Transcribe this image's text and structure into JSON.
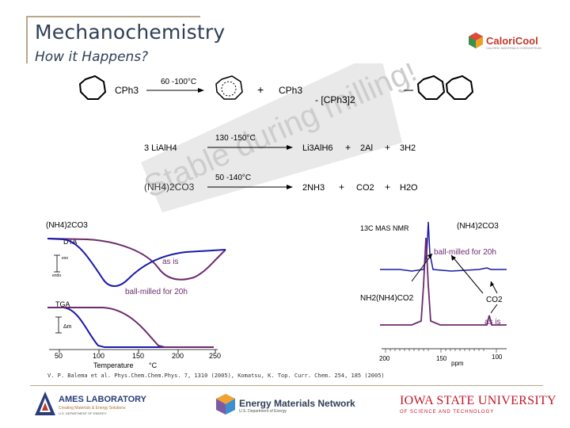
{
  "title": "Mechanochemistry",
  "subtitle": "How it Happens?",
  "watermark": "Stable during milling!",
  "logos": {
    "caloricool": "CaloriCool",
    "caloricool_sub": "CALORIC MATERIALS CONSORTIUM",
    "ames": "AMES LABORATORY",
    "ames_sub": "Creating Materials & Energy Solutions",
    "ames_sub2": "U.S. DEPARTMENT OF ENERGY",
    "emn": "Energy Materials Network",
    "emn_sub": "U.S. Department of Energy",
    "isu": "IOWA STATE UNIVERSITY",
    "isu_sub": "OF SCIENCE AND TECHNOLOGY"
  },
  "reactions": {
    "r1_cond": "60 -100°C",
    "r1_reactant": "CPh3",
    "r1_plus": "+",
    "r1_product": "CPh3",
    "r1_byproduct": "- [CPh3]2",
    "r2_cond": "130 -150°C",
    "r2_reactant": "3 LiAlH4",
    "r2_p1": "Li3AlH6",
    "r2_plus1": "+",
    "r2_p2": "2Al",
    "r2_plus2": "+",
    "r2_p3": "3H2",
    "r3_cond": "50 -140°C",
    "r3_reactant": "(NH4)2CO3",
    "r3_p1": "2NH3",
    "r3_plus1": "+",
    "r3_p2": "CO2",
    "r3_plus2": "+",
    "r3_p3": "H2O"
  },
  "dta": {
    "compound": "(NH4)2CO3",
    "dta_label": "DTA",
    "exo": "exo",
    "endo": "endo",
    "as_is": "as is",
    "milled": "ball-milled for 20h",
    "tga_label": "TGA",
    "dm": "Δm",
    "x_ticks": [
      "50",
      "100",
      "150",
      "200",
      "250"
    ],
    "x_label": "Temperature",
    "x_unit": "°C"
  },
  "nmr": {
    "title": "13C MAS NMR",
    "compound": "(NH4)2CO3",
    "milled": "ball-milled for 20h",
    "peak1": "NH2(NH4)CO2",
    "peak2": "CO2",
    "as_is": "as is",
    "x_ticks": [
      "200",
      "150",
      "100"
    ],
    "x_unit": "ppm"
  },
  "citation": "V. P. Balema et al. Phys.Chem.Chem.Phys. 7, 1310 (2005), Komatsu, K. Top. Curr. Chem. 254, 185 (2005)",
  "colors": {
    "purple": "#6b2a6e",
    "blue": "#1a1aa8",
    "title": "#2f3f55",
    "accent": "#b9a789"
  }
}
